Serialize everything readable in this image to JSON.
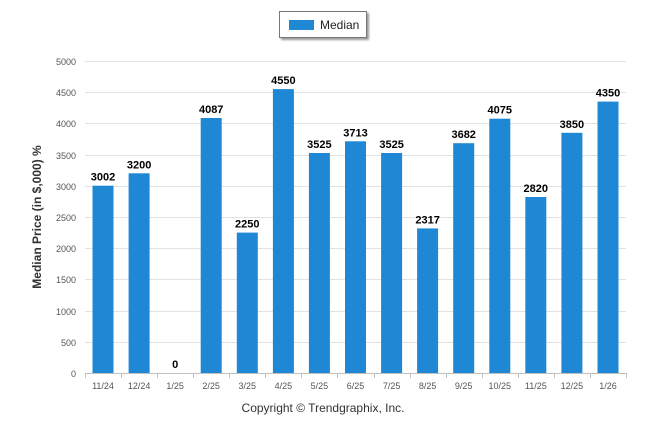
{
  "chart_data": {
    "type": "bar",
    "categories": [
      "11/24",
      "12/24",
      "1/25",
      "2/25",
      "3/25",
      "4/25",
      "5/25",
      "6/25",
      "7/25",
      "8/25",
      "9/25",
      "10/25",
      "11/25",
      "12/25",
      "1/26"
    ],
    "series": [
      {
        "name": "Median",
        "values": [
          3002,
          3200,
          0,
          4087,
          2250,
          4550,
          3525,
          3713,
          3525,
          2317,
          3682,
          4075,
          2820,
          3850,
          4350
        ]
      }
    ],
    "title": "",
    "xlabel": "",
    "ylabel": "Median Price (in $,000) %",
    "ylim": [
      0,
      5000
    ],
    "yticks": [
      0,
      500,
      1000,
      1500,
      2000,
      2500,
      3000,
      3500,
      4000,
      4500,
      5000
    ],
    "grid": true,
    "legend": "top-center",
    "bar_color": "#1f88d4",
    "data_labels": true
  },
  "footer": {
    "credit": "Copyright © Trendgraphix, Inc."
  }
}
